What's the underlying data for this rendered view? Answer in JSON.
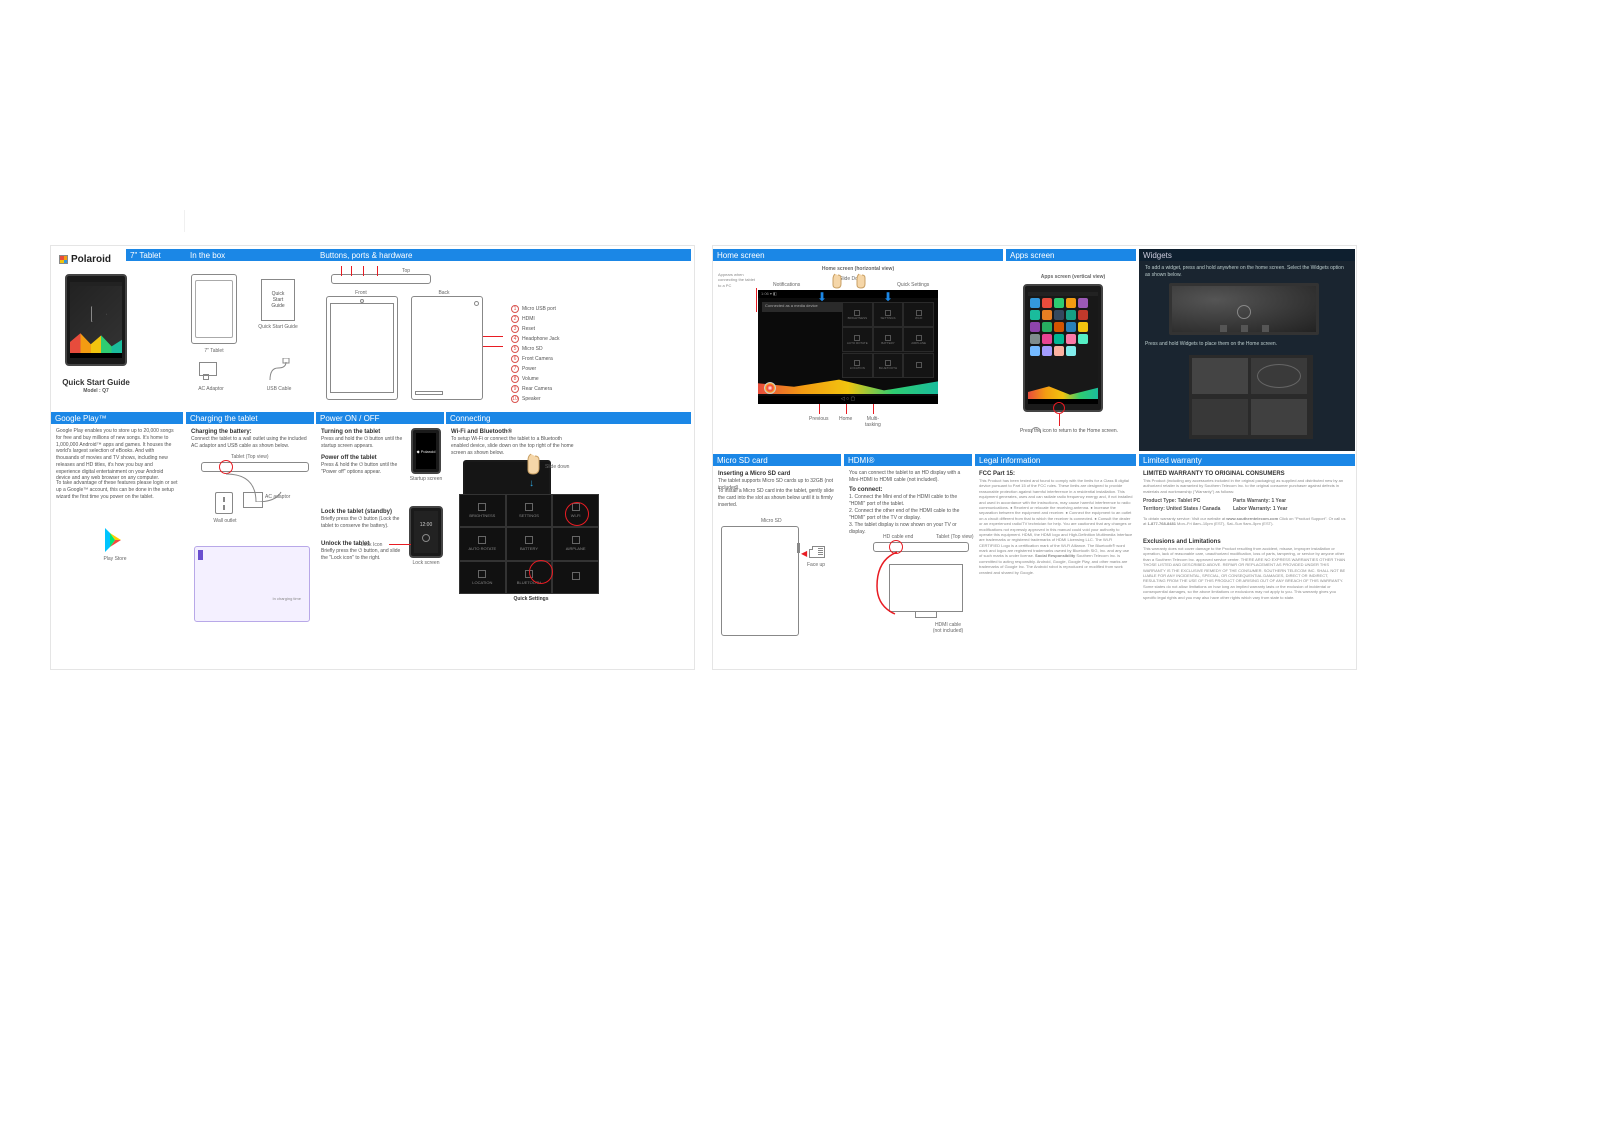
{
  "brand": "Polaroid",
  "title": "Quick Start Guide",
  "model_label": "Model : Q7",
  "left_headers": {
    "tablet": "7\"  Tablet",
    "inbox": "In the box",
    "buttons": "Buttons, ports & hardware",
    "gplay": "Google Play™",
    "charging": "Charging the tablet",
    "poweron": "Power ON / OFF",
    "connecting": "Connecting"
  },
  "right_headers": {
    "home": "Home screen",
    "apps": "Apps screen",
    "widgets": "Widgets",
    "sd": "Micro SD card",
    "hdmi": "HDMI®",
    "legal": "Legal information",
    "warranty": "Limited warranty"
  },
  "inbox_captions": {
    "qsg_box": "Quick\nStart\nGuide",
    "qsg": "Quick Start Guide",
    "tablet": "7\" Tablet",
    "ac": "AC Adaptor",
    "usb": "USB Cable"
  },
  "ports": [
    "Micro USB port",
    "HDMI",
    "Reset",
    "Headphone Jack",
    "Micro SD",
    "Front Camera",
    "Power",
    "Volume",
    "Rear Camera",
    "Speaker"
  ],
  "diagram_labels": {
    "top": "Top",
    "front": "Front",
    "back": "Back"
  },
  "gplay_text": "Google Play enables you to store up to 20,000 songs for free and buy millions of new songs. It's home to 1,000,000 Android™ apps and games. It houses the world's largest selection of eBooks. And with thousands of movies and TV shows, including new releases and HD titles, it's how you buy and experience digital entertainment on your Android device and any web browser on any computer.",
  "gplay_text2": "To take advantage of these features please login or set up a Google™ account, this can be done in the setup wizard the first time you power on the tablet.",
  "gplay_caption": "Play Store",
  "charging": {
    "h": "Charging the battery:",
    "p": "Connect the tablet to a wall outlet using the included AC adaptor and USB cable as shown below.",
    "lbl_tablet": "Tablet (Top view)",
    "lbl_ac": "AC adaptor",
    "lbl_wall": "Wall outlet",
    "lbl_chg": "In charging time"
  },
  "power": {
    "on_h": "Turning on the tablet",
    "on_p": "Press and hold the ⏻ button until the startup screen appears.",
    "off_h": "Power off the tablet",
    "off_p": "Press & hold the ⏻ button until the \"Power off\" options appear.",
    "lock_h": "Lock the tablet (standby)",
    "lock_p": "Briefly press the ⏻ button (Lock the tablet to conserve the battery).",
    "unlock_h": "Unlock the tablet",
    "unlock_p": "Briefly press the ⏻ button, and slide the \"Lock icon\" to the right.",
    "startup": "Startup screen",
    "lockscreen": "Lock screen",
    "lockicon": "Lock Icon"
  },
  "connecting": {
    "h": "Wi-Fi and Bluetooth®",
    "p": "To setup Wi-Fi or connect the tablet to a Bluetooth enabled device, slide down on the top right of the home screen as shown below.",
    "slide": "Slide down",
    "qs": "Quick Settings"
  },
  "home": {
    "hview": "Home screen (horizontal view)",
    "appears": "Appears when connecting the tablet to a PC",
    "notif": "Notifications",
    "slidedown": "Slide Down",
    "qs": "Quick Settings",
    "prev": "Previous",
    "home": "Home",
    "multi": "Multi-\ntasking"
  },
  "apps": {
    "vview": "Apps screen (vertical view)",
    "press": "Press the          icon to return to the Home screen."
  },
  "widgets": {
    "p1": "To add a widget, press and hold anywhere on the home screen. Select the Widgets option as shown below.",
    "p2": "Press and hold Widgets to place them on the Home screen."
  },
  "sd": {
    "h": "Inserting a Micro SD card",
    "p1": "The tablet supports Micro SD cards up to 32GB (not included).",
    "p2": "To install a Micro SD card into the tablet, gently slide the card into the slot as shown below until it is firmly inserted.",
    "lbl": "Micro SD",
    "face": "Face up"
  },
  "hdmi": {
    "p": "You can connect the tablet to an HD display with a Mini-HDMI to HDMI cable (not included).",
    "h": "To connect:",
    "s1": "1. Connect the Mini end of the HDMI cable to the \"HDMI\" port of the tablet.",
    "s2": "2. Connect the other end of the HDMI cable to the \"HDMI\" port of the TV or display.",
    "s3": "3. The tablet display is now shown on your TV or display.",
    "hd": "HD cable end",
    "tablet": "Tablet (Top view)",
    "cable": "HDMI cable\n(not included)"
  },
  "legal": {
    "fcc": "FCC Part 15:",
    "resp": "Social Responsibility"
  },
  "warranty": {
    "h": "LIMITED WARRANTY TO ORIGINAL CONSUMERS",
    "type": "Product Type: Tablet PC",
    "parts": "Parts Warranty: 1 Year",
    "territory": "Territory: United States / Canada",
    "labor": "Labor Warranty: 1 Year",
    "web": "www.southerntelecom.com",
    "phone": "1-877-768-8481",
    "excl": "Exclusions and Limitations"
  },
  "colors": {
    "blue": "#1b87e6",
    "dark": "#0e1f2f",
    "red": "#e81c23"
  },
  "tiles": [
    "BRIGHTNESS",
    "SETTINGS",
    "WI-FI",
    "AUTO ROTATE",
    "BATTERY",
    "AIRPLANE",
    "LOCATION",
    "BLUETOOTH",
    ""
  ],
  "app_colors": [
    "#3498db",
    "#e74c3c",
    "#2ecc71",
    "#f39c12",
    "#9b59b6",
    "#1abc9c",
    "#e67e22",
    "#34495e",
    "#16a085",
    "#c0392b",
    "#8e44ad",
    "#27ae60",
    "#d35400",
    "#2980b9",
    "#f1c40f",
    "#7f8c8d",
    "#e84393",
    "#00b894",
    "#fd79a8",
    "#55efc4",
    "#74b9ff",
    "#a29bfe",
    "#fab1a0",
    "#81ecec"
  ]
}
